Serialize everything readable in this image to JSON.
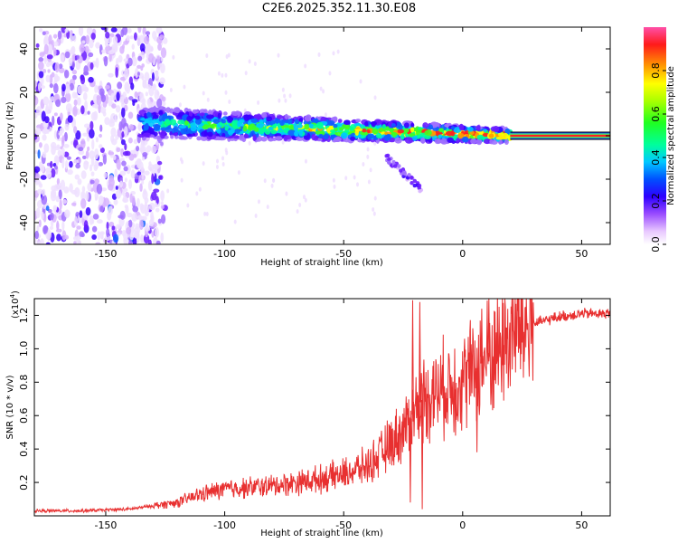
{
  "title": "C2E6.2025.352.11.30.E08",
  "chart_data": [
    {
      "type": "heatmap",
      "title": "C2E6.2025.352.11.30.E08",
      "xlabel": "Height of straight line (km)",
      "ylabel": "Frequency (Hz)",
      "xlim": [
        -180,
        62
      ],
      "ylim": [
        -50,
        50
      ],
      "xticks": [
        -150,
        -100,
        -50,
        0,
        50
      ],
      "yticks": [
        -40,
        -20,
        0,
        20,
        40
      ],
      "colorbar": {
        "label": "Normalized spectral amplitude",
        "range": [
          0,
          1
        ],
        "ticks": [
          0.0,
          0.2,
          0.4,
          0.6,
          0.8
        ],
        "tick_labels": [
          "0.0",
          "0.2",
          "0.4",
          "0.6",
          "0.8"
        ]
      },
      "features": {
        "diffuse_noise_x_range": [
          -180,
          -135
        ],
        "main_band_x_range": [
          -135,
          20
        ],
        "main_band_frequency_start": 6,
        "main_band_frequency_end": 0,
        "steady_line_x_range": [
          20,
          62
        ],
        "steady_line_frequency": 0,
        "descending_streak_x": [
          -32,
          -17
        ],
        "descending_streak_frequency": [
          -10,
          -25
        ]
      }
    },
    {
      "type": "line",
      "xlabel": "Height of straight line (km)",
      "ylabel": "SNR (10 * v/v)",
      "multiplier_label": "(x10",
      "multiplier_exp": "4",
      "xlim": [
        -180,
        62
      ],
      "ylim": [
        0,
        13000
      ],
      "xticks": [
        -150,
        -100,
        -50,
        0,
        50
      ],
      "yticks": [
        2000,
        4000,
        6000,
        8000,
        10000,
        12000
      ],
      "ytick_labels": [
        "0.2",
        "0.4",
        "0.6",
        "0.8",
        "1.0",
        "1.2"
      ],
      "color": "#e83030",
      "series": [
        {
          "name": "SNR",
          "x": [
            -180,
            -160,
            -140,
            -130,
            -120,
            -110,
            -100,
            -90,
            -80,
            -70,
            -60,
            -50,
            -40,
            -35,
            -30,
            -25,
            -20,
            -18,
            -15,
            -10,
            -5,
            0,
            5,
            10,
            15,
            20,
            30,
            40,
            50,
            62
          ],
          "y": [
            300,
            300,
            400,
            600,
            800,
            1300,
            1600,
            1700,
            1800,
            2000,
            2200,
            2500,
            3000,
            3600,
            4400,
            5100,
            6300,
            6800,
            7200,
            7500,
            7800,
            8200,
            8700,
            9400,
            10000,
            10800,
            11500,
            11900,
            12100,
            12100
          ]
        }
      ],
      "spikes": [
        {
          "x": -21,
          "y": 12900
        },
        {
          "x": -18,
          "y": 12800
        },
        {
          "x": 11,
          "y": 13000
        },
        {
          "x": 8,
          "y": 12400
        },
        {
          "x": 6,
          "y": 3800
        },
        {
          "x": -17,
          "y": 400
        },
        {
          "x": -22,
          "y": 800
        },
        {
          "x": -3,
          "y": 4800
        }
      ]
    }
  ]
}
